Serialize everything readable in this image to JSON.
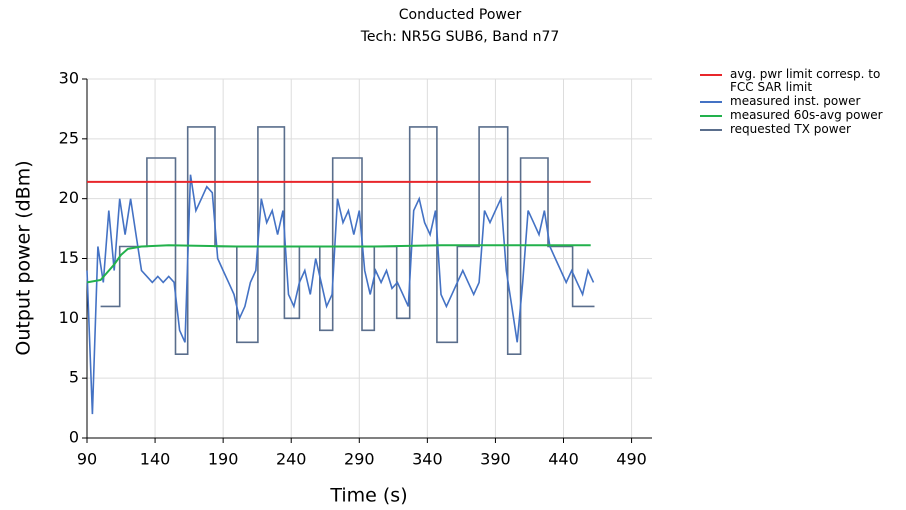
{
  "chart_data": {
    "type": "line",
    "title": "Conducted Power",
    "subtitle": "Tech: NR5G SUB6, Band n77",
    "x_label": "Time (s)",
    "y_label": "Output power (dBm)",
    "xlim": [
      90,
      505
    ],
    "ylim": [
      0,
      30
    ],
    "xticks": [
      90,
      140,
      190,
      240,
      290,
      340,
      390,
      440,
      490
    ],
    "yticks": [
      0,
      5,
      10,
      15,
      20,
      25,
      30
    ],
    "grid": true,
    "legend": "right",
    "series": [
      {
        "name": "avg. pwr limit corresp. to FCC SAR limit",
        "color": "#e8262b",
        "x": [
          90,
          460
        ],
        "values": [
          21.4,
          21.4
        ]
      },
      {
        "name": "measured inst. power",
        "color": "#4472c4",
        "x": [
          90,
          94,
          98,
          102,
          106,
          110,
          114,
          118,
          122,
          126,
          130,
          134,
          138,
          142,
          146,
          150,
          154,
          158,
          162,
          166,
          170,
          174,
          178,
          182,
          186,
          190,
          194,
          198,
          202,
          206,
          210,
          214,
          218,
          222,
          226,
          230,
          234,
          238,
          242,
          246,
          250,
          254,
          258,
          262,
          266,
          270,
          274,
          278,
          282,
          286,
          290,
          294,
          298,
          302,
          306,
          310,
          314,
          318,
          322,
          326,
          330,
          334,
          338,
          342,
          346,
          350,
          354,
          358,
          362,
          366,
          370,
          374,
          378,
          382,
          386,
          390,
          394,
          398,
          402,
          406,
          410,
          414,
          418,
          422,
          426,
          430,
          434,
          438,
          442,
          446,
          450,
          454,
          458,
          462
        ],
        "values": [
          14,
          2,
          16,
          13,
          19,
          14,
          20,
          17,
          20,
          17,
          14,
          13.5,
          13,
          13.5,
          13,
          13.5,
          13,
          9,
          8,
          22,
          19,
          20,
          21,
          20.5,
          15,
          14,
          13,
          12,
          10,
          11,
          13,
          14,
          20,
          18,
          19,
          17,
          19,
          12,
          11,
          13,
          14,
          12,
          15,
          13,
          11,
          12,
          20,
          18,
          19,
          17,
          19,
          14,
          12,
          14,
          13,
          14,
          12.5,
          13,
          12,
          11,
          19,
          20,
          18,
          17,
          19,
          12,
          11,
          12,
          13,
          14,
          13,
          12,
          13,
          19,
          18,
          19,
          20,
          14,
          11,
          8,
          13,
          19,
          18,
          17,
          19,
          16,
          15,
          14,
          13,
          14,
          13,
          12,
          14,
          13
        ]
      },
      {
        "name": "measured 60s-avg power",
        "color": "#22b14c",
        "x": [
          90,
          100,
          110,
          115,
          120,
          130,
          150,
          200,
          250,
          300,
          350,
          400,
          460
        ],
        "values": [
          13,
          13.2,
          14.5,
          15.3,
          15.8,
          16,
          16.1,
          16,
          16,
          16,
          16.1,
          16.1,
          16.1
        ]
      },
      {
        "name": "requested TX power",
        "color": "#5a6e8c",
        "x": [
          100,
          114,
          114,
          134,
          134,
          155,
          155,
          164,
          164,
          184,
          184,
          200,
          200,
          215.5,
          215.5,
          235,
          235,
          246,
          246,
          261,
          261,
          270.5,
          270.5,
          292,
          292,
          301,
          301,
          317.5,
          317.5,
          327,
          327,
          347,
          347,
          362,
          362,
          378,
          378,
          399,
          399,
          408.5,
          408.5,
          428.6,
          428.6,
          446.7,
          446.7,
          462.8
        ],
        "values": [
          11,
          11,
          16,
          16,
          23.4,
          23.4,
          7,
          7,
          26,
          26,
          16,
          16,
          8,
          8,
          26,
          26,
          10,
          10,
          16,
          16,
          9,
          9,
          23.4,
          23.4,
          9,
          9,
          16,
          16,
          10,
          10,
          26,
          26,
          8,
          8,
          16,
          16,
          26,
          26,
          7,
          7,
          23.4,
          23.4,
          16,
          16,
          11,
          11
        ]
      }
    ]
  }
}
